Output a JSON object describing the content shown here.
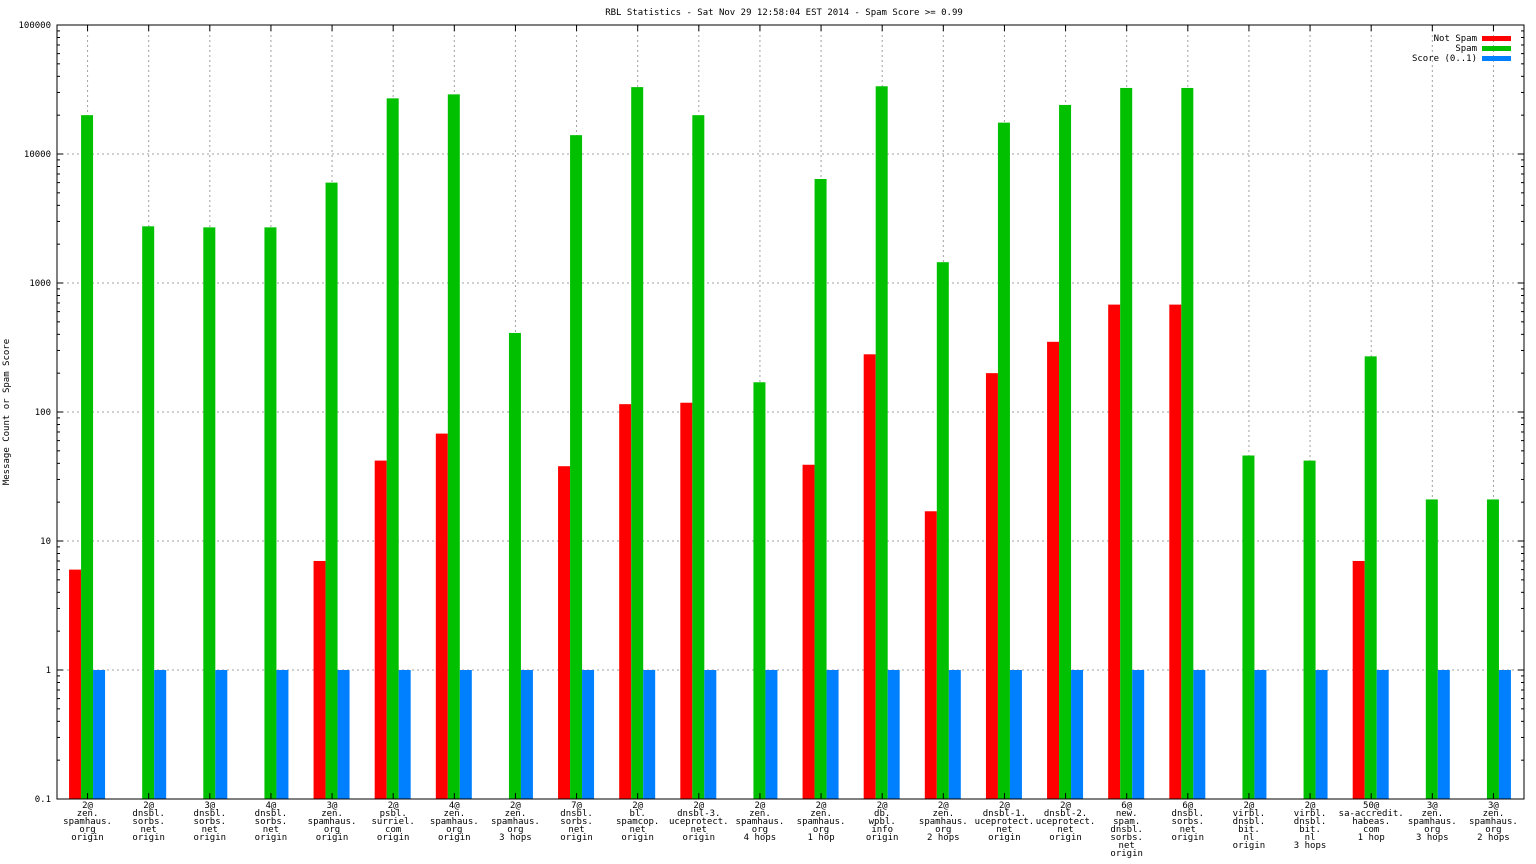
{
  "chart_data": {
    "type": "bar",
    "title": "RBL Statistics - Sat Nov 29 12:58:04 EST 2014 - Spam Score >= 0.99",
    "ylabel": "Message Count or Spam Score",
    "xlabel": "",
    "yscale": "log",
    "ylim": [
      0.1,
      100000
    ],
    "yticks": [
      "0.1",
      "1",
      "10",
      "100",
      "1000",
      "10000",
      "100000"
    ],
    "grid": true,
    "legend_position": "top-right",
    "categories": [
      [
        "2@",
        "zen.",
        "spamhaus.",
        "org",
        "origin"
      ],
      [
        "2@",
        "dnsbl.",
        "sorbs.",
        "net",
        "origin"
      ],
      [
        "3@",
        "dnsbl.",
        "sorbs.",
        "net",
        "origin"
      ],
      [
        "4@",
        "dnsbl.",
        "sorbs.",
        "net",
        "origin"
      ],
      [
        "3@",
        "zen.",
        "spamhaus.",
        "org",
        "origin"
      ],
      [
        "2@",
        "psbl.",
        "surriel.",
        "com",
        "origin"
      ],
      [
        "4@",
        "zen.",
        "spamhaus.",
        "org",
        "origin"
      ],
      [
        "2@",
        "zen.",
        "spamhaus.",
        "org",
        "3 hops"
      ],
      [
        "7@",
        "dnsbl.",
        "sorbs.",
        "net",
        "origin"
      ],
      [
        "2@",
        "bl.",
        "spamcop.",
        "net",
        "origin"
      ],
      [
        "2@",
        "dnsbl-3.",
        "uceprotect.",
        "net",
        "origin"
      ],
      [
        "2@",
        "zen.",
        "spamhaus.",
        "org",
        "4 hops"
      ],
      [
        "2@",
        "zen.",
        "spamhaus.",
        "org",
        "1 hop"
      ],
      [
        "2@",
        "db.",
        "wpbl.",
        "info",
        "origin"
      ],
      [
        "2@",
        "zen.",
        "spamhaus.",
        "org",
        "2 hops"
      ],
      [
        "2@",
        "dnsbl-1.",
        "uceprotect.",
        "net",
        "origin"
      ],
      [
        "2@",
        "dnsbl-2.",
        "uceprotect.",
        "net",
        "origin"
      ],
      [
        "6@",
        "new.",
        "spam.",
        "dnsbl.",
        "sorbs.",
        "net",
        "origin"
      ],
      [
        "6@",
        "dnsbl.",
        "sorbs.",
        "net",
        "origin"
      ],
      [
        "2@",
        "virbl.",
        "dnsbl.",
        "bit.",
        "nl",
        "origin"
      ],
      [
        "2@",
        "virbl.",
        "dnsbl.",
        "bit.",
        "nl",
        "3 hops"
      ],
      [
        "50@",
        "sa-accredit.",
        "habeas.",
        "com",
        "1 hop"
      ],
      [
        "3@",
        "zen.",
        "spamhaus.",
        "org",
        "3 hops"
      ],
      [
        "3@",
        "zen.",
        "spamhaus.",
        "org",
        "2 hops"
      ]
    ],
    "series": [
      {
        "name": "Not Spam",
        "color": "#ff0000",
        "values": [
          6,
          null,
          null,
          null,
          7,
          42,
          68,
          null,
          38,
          115,
          118,
          null,
          39,
          280,
          17,
          200,
          350,
          680,
          680,
          null,
          null,
          7,
          null,
          null
        ]
      },
      {
        "name": "Spam",
        "color": "#00c000",
        "values": [
          20000,
          2750,
          2700,
          2700,
          6000,
          27000,
          29000,
          410,
          14000,
          33000,
          20000,
          170,
          6400,
          33500,
          1450,
          17500,
          24000,
          32500,
          32500,
          46,
          42,
          270,
          21,
          21
        ]
      },
      {
        "name": "Score (0..1)",
        "color": "#0080ff",
        "values": [
          1,
          1,
          1,
          1,
          1,
          1,
          1,
          1,
          1,
          1,
          1,
          1,
          1,
          1,
          1,
          1,
          1,
          1,
          1,
          1,
          1,
          1,
          1,
          1
        ]
      }
    ]
  }
}
